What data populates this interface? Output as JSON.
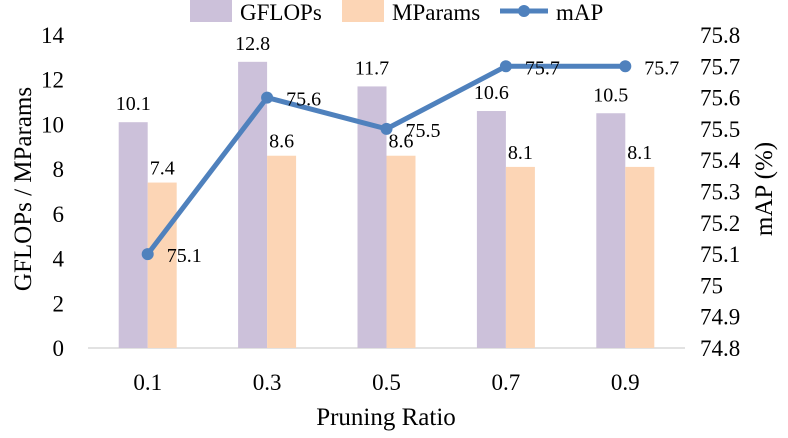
{
  "chart_data": {
    "type": "bar+line",
    "title": "",
    "xlabel": "Pruning Ratio",
    "ylabel_left": "GFLOPs / MParams",
    "ylabel_right": "mAP (%)",
    "categories": [
      "0.1",
      "0.3",
      "0.5",
      "0.7",
      "0.9"
    ],
    "ylim_left": [
      0,
      14
    ],
    "yticks_left": [
      0,
      2,
      4,
      6,
      8,
      10,
      12,
      14
    ],
    "ytick_labels_left": [
      "0",
      "2",
      "4",
      "6",
      "8",
      "10",
      "12",
      "14"
    ],
    "ylim_right": [
      74.8,
      75.8
    ],
    "yticks_right": [
      74.8,
      74.9,
      75.0,
      75.1,
      75.2,
      75.3,
      75.4,
      75.5,
      75.6,
      75.7,
      75.8
    ],
    "ytick_labels_right": [
      "74.8",
      "74.9",
      "75",
      "75.1",
      "75.2",
      "75.3",
      "75.4",
      "75.5",
      "75.6",
      "75.7",
      "75.8"
    ],
    "legend_position": "top",
    "series": [
      {
        "name": "GFLOPs",
        "kind": "bar",
        "axis": "left",
        "color": "#ccc1da",
        "values": [
          10.1,
          12.8,
          11.7,
          10.6,
          10.5
        ],
        "labels": [
          "10.1",
          "12.8",
          "11.7",
          "10.6",
          "10.5"
        ]
      },
      {
        "name": "MParams",
        "kind": "bar",
        "axis": "left",
        "color": "#fcd5b5",
        "values": [
          7.4,
          8.6,
          8.6,
          8.1,
          8.1
        ],
        "labels": [
          "7.4",
          "8.6",
          "8.6",
          "8.1",
          "8.1"
        ]
      },
      {
        "name": "mAP",
        "kind": "line",
        "axis": "right",
        "color": "#4f81bd",
        "values": [
          75.1,
          75.6,
          75.5,
          75.7,
          75.7
        ],
        "labels": [
          "75.1",
          "75.6",
          "75.5",
          "75.7",
          "75.7"
        ]
      }
    ]
  }
}
